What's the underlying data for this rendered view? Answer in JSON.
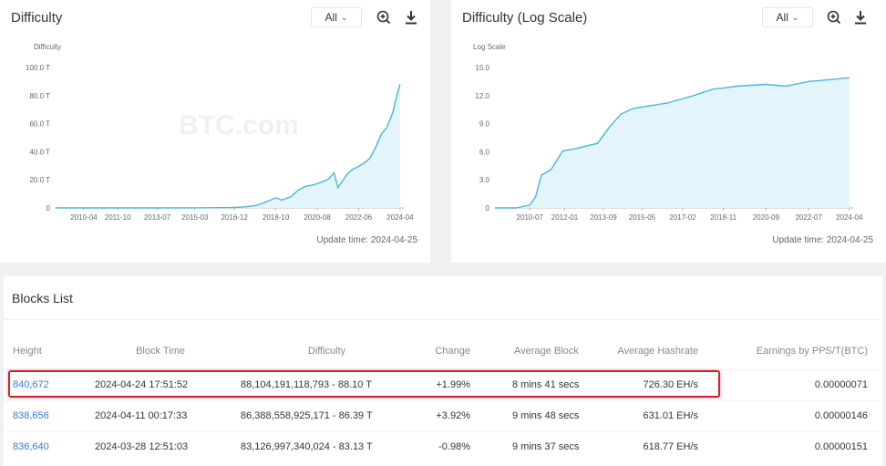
{
  "left_panel": {
    "title": "Difficulty",
    "range_label": "All",
    "y_axis_title": "Difficulty",
    "watermark": "BTC.com",
    "update_time": "Update time: 2024-04-25"
  },
  "right_panel": {
    "title": "Difficulty (Log Scale)",
    "range_label": "All",
    "y_axis_title": "Log Scale",
    "watermark": "BTC.com",
    "update_time": "Update time: 2024-04-25"
  },
  "icons": {
    "zoom": "zoom-in-icon",
    "download": "download-icon",
    "chevron": "chevron-down-icon"
  },
  "colors": {
    "line": "#4db6d6",
    "fill": "#e3f4fb",
    "link": "#3a78c9",
    "positive": "#3aa36b",
    "negative": "#e0464b",
    "highlight": "#c8262d"
  },
  "chart_data": [
    {
      "type": "area",
      "title": "Difficulty",
      "ylabel": "Difficulty",
      "xlabel": "",
      "ylim": [
        0,
        100
      ],
      "yticks": [
        "0",
        "20.0 T",
        "40.0 T",
        "60.0 T",
        "80.0 T",
        "100.0 T"
      ],
      "xticks": [
        "2010-04",
        "2011-10",
        "2013-07",
        "2015-03",
        "2016-12",
        "2018-10",
        "2020-08",
        "2022-06",
        "2024-04"
      ],
      "grid": false,
      "series": [
        {
          "x": [
            "2009-01",
            "2010-04",
            "2011-10",
            "2013-07",
            "2015-03",
            "2016-12",
            "2017-06",
            "2017-12",
            "2018-06",
            "2018-10",
            "2019-01",
            "2019-06",
            "2019-10",
            "2020-02",
            "2020-05",
            "2020-08",
            "2020-11",
            "2021-02",
            "2021-05",
            "2021-07",
            "2021-09",
            "2021-12",
            "2022-03",
            "2022-06",
            "2022-09",
            "2022-12",
            "2023-03",
            "2023-06",
            "2023-09",
            "2023-12",
            "2024-02",
            "2024-04"
          ],
          "values": [
            0,
            0,
            0,
            0,
            0.05,
            0.3,
            0.8,
            1.9,
            4.9,
            7.2,
            5.6,
            7.9,
            12.8,
            15.5,
            16.1,
            17.3,
            18.7,
            20.6,
            25.0,
            14.4,
            18.4,
            24.3,
            27.6,
            29.6,
            32.0,
            35.4,
            43.0,
            52.4,
            57.3,
            67.3,
            78.4,
            88.1
          ]
        }
      ]
    },
    {
      "type": "area",
      "title": "Difficulty (Log Scale)",
      "ylabel": "Log Scale",
      "xlabel": "",
      "ylim": [
        0,
        15
      ],
      "yticks": [
        "0",
        "3.0",
        "6.0",
        "9.0",
        "12.0",
        "15.0"
      ],
      "xticks": [
        "2010-07",
        "2012-01",
        "2013-09",
        "2015-05",
        "2017-02",
        "2018-11",
        "2020-09",
        "2022-07",
        "2024-04"
      ],
      "grid": false,
      "series": [
        {
          "x": [
            "2009-01",
            "2009-12",
            "2010-07",
            "2010-10",
            "2011-01",
            "2011-06",
            "2011-12",
            "2012-06",
            "2012-12",
            "2013-06",
            "2013-12",
            "2014-06",
            "2014-12",
            "2015-06",
            "2016-06",
            "2017-06",
            "2018-06",
            "2018-11",
            "2019-06",
            "2020-09",
            "2021-07",
            "2022-07",
            "2023-06",
            "2024-04"
          ],
          "values": [
            0,
            0,
            0.3,
            1.2,
            3.5,
            4.1,
            6.1,
            6.3,
            6.6,
            6.9,
            8.6,
            10.0,
            10.6,
            10.8,
            11.2,
            11.9,
            12.7,
            12.8,
            13.0,
            13.2,
            13.0,
            13.5,
            13.7,
            13.9
          ]
        }
      ]
    }
  ],
  "blocks_list": {
    "title": "Blocks List",
    "headers": [
      "Height",
      "Block Time",
      "Difficulty",
      "Change",
      "Average Block",
      "Average Hashrate",
      "Earnings by PPS/T(BTC)"
    ],
    "rows": [
      {
        "height": "840,672",
        "time": "2024-04-24 17:51:52",
        "difficulty": "88,104,191,118,793 - 88.10 T",
        "change": "+1.99%",
        "change_sign": "positive",
        "avg_block": "8 mins 41 secs",
        "hashrate": "726.30 EH/s",
        "earnings": "0.00000071"
      },
      {
        "height": "838,656",
        "time": "2024-04-11 00:17:33",
        "difficulty": "86,388,558,925,171 - 86.39 T",
        "change": "+3.92%",
        "change_sign": "positive",
        "avg_block": "9 mins 48 secs",
        "hashrate": "631.01 EH/s",
        "earnings": "0.00000146"
      },
      {
        "height": "836,640",
        "time": "2024-03-28 12:51:03",
        "difficulty": "83,126,997,340,024 - 83.13 T",
        "change": "-0.98%",
        "change_sign": "negative",
        "avg_block": "9 mins 37 secs",
        "hashrate": "618.77 EH/s",
        "earnings": "0.00000151"
      }
    ]
  }
}
